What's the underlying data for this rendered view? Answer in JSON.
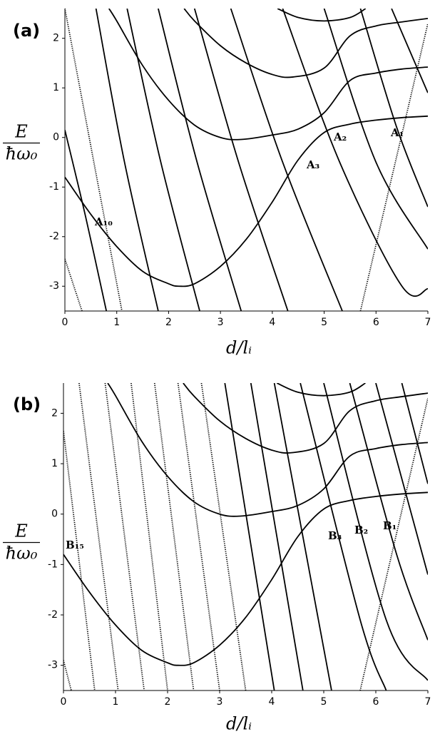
{
  "chart_data": [
    {
      "type": "line",
      "panel": "(a)",
      "xlabel": "d/lᵢ",
      "ylabel": [
        "E",
        "ħω₀"
      ],
      "xlim": [
        0,
        7
      ],
      "ylim": [
        -3.5,
        2.6
      ],
      "xticks": [
        0,
        1,
        2,
        3,
        4,
        5,
        6,
        7
      ],
      "yticks": [
        -3,
        -2,
        -1,
        0,
        1,
        2
      ],
      "color": "#000000",
      "annotations": [
        "A₁₀",
        "A₃",
        "A₂",
        "A₁"
      ],
      "series": [
        {
          "style": "solid",
          "x": [
            0,
            0.5,
            1,
            1.5,
            2,
            2.2,
            2.5,
            3,
            3.5,
            4,
            4.5,
            5,
            5.5,
            6,
            6.5,
            7
          ],
          "values": [
            -0.8,
            -1.55,
            -2.2,
            -2.7,
            -2.95,
            -3.0,
            -2.95,
            -2.6,
            -2.05,
            -1.3,
            -0.45,
            0.1,
            0.27,
            0.35,
            0.4,
            0.43
          ]
        },
        {
          "style": "solid",
          "x": [
            0.85,
            1,
            1.5,
            2,
            2.5,
            3,
            3.4,
            4,
            4.5,
            5,
            5.5,
            6,
            6.5,
            7
          ],
          "values": [
            2.6,
            2.35,
            1.45,
            0.75,
            0.25,
            0.0,
            -0.04,
            0.05,
            0.17,
            0.5,
            1.15,
            1.3,
            1.38,
            1.42
          ]
        },
        {
          "style": "solid",
          "x": [
            2.3,
            2.5,
            3,
            3.5,
            4,
            4.4,
            5,
            5.5,
            6,
            6.5,
            7
          ],
          "values": [
            2.6,
            2.35,
            1.85,
            1.5,
            1.27,
            1.22,
            1.4,
            2.05,
            2.25,
            2.33,
            2.4
          ]
        },
        {
          "style": "solid",
          "x": [
            4.1,
            4.5,
            5,
            5.5,
            5.8
          ],
          "values": [
            2.6,
            2.42,
            2.35,
            2.42,
            2.6
          ]
        },
        {
          "style": "dotted",
          "x": [
            0,
            0.33
          ],
          "values": [
            -2.45,
            -3.5
          ]
        },
        {
          "style": "dotted",
          "x": [
            0,
            1.1
          ],
          "values": [
            2.6,
            -3.5
          ]
        },
        {
          "style": "solid",
          "x": [
            0,
            0.4,
            0.8
          ],
          "values": [
            0.15,
            -1.6,
            -3.5
          ]
        },
        {
          "style": "solid",
          "x": [
            0.6,
            1.15,
            1.8
          ],
          "values": [
            2.6,
            -0.5,
            -3.5
          ]
        },
        {
          "style": "solid",
          "x": [
            1.2,
            1.85,
            2.6
          ],
          "values": [
            2.6,
            -0.5,
            -3.5
          ]
        },
        {
          "style": "solid",
          "x": [
            1.8,
            2.55,
            3.4
          ],
          "values": [
            2.6,
            -0.5,
            -3.5
          ]
        },
        {
          "style": "solid",
          "x": [
            2.5,
            3.35,
            4.3
          ],
          "values": [
            2.6,
            -0.5,
            -3.5
          ]
        },
        {
          "style": "solid",
          "x": [
            3.2,
            4.2,
            5.35
          ],
          "values": [
            2.6,
            -0.5,
            -3.5
          ]
        },
        {
          "style": "solid",
          "x": [
            4.2,
            5.3,
            6.5,
            7
          ],
          "values": [
            2.6,
            -0.5,
            -3.0,
            -3.05
          ]
        },
        {
          "style": "solid",
          "x": [
            5.0,
            6.0,
            7
          ],
          "values": [
            2.6,
            -0.5,
            -2.25
          ]
        },
        {
          "style": "solid",
          "x": [
            5.7,
            6.4,
            7
          ],
          "values": [
            2.6,
            0.2,
            -1.4
          ]
        },
        {
          "style": "solid",
          "x": [
            6.3,
            7
          ],
          "values": [
            2.6,
            0.9
          ]
        },
        {
          "style": "dotted",
          "x": [
            5.7,
            7
          ],
          "values": [
            -3.5,
            2.3
          ]
        }
      ]
    },
    {
      "type": "line",
      "panel": "(b)",
      "xlabel": "d/lᵢ",
      "ylabel": [
        "E",
        "ħω₀"
      ],
      "xlim": [
        0,
        7
      ],
      "ylim": [
        -3.5,
        2.6
      ],
      "xticks": [
        0,
        1,
        2,
        3,
        4,
        5,
        6,
        7
      ],
      "yticks": [
        -3,
        -2,
        -1,
        0,
        1,
        2
      ],
      "color": "#000000",
      "annotations": [
        "B₁₅",
        "B₃",
        "B₂",
        "B₁"
      ],
      "series": [
        {
          "style": "solid",
          "x": [
            0,
            0.5,
            1,
            1.5,
            2,
            2.2,
            2.5,
            3,
            3.5,
            4,
            4.5,
            5,
            5.5,
            6,
            6.5,
            7
          ],
          "values": [
            -0.8,
            -1.55,
            -2.2,
            -2.7,
            -2.95,
            -3.0,
            -2.95,
            -2.6,
            -2.05,
            -1.3,
            -0.45,
            0.1,
            0.27,
            0.35,
            0.4,
            0.43
          ]
        },
        {
          "style": "solid",
          "x": [
            0.85,
            1,
            1.5,
            2,
            2.5,
            3,
            3.4,
            4,
            4.5,
            5,
            5.5,
            6,
            6.5,
            7
          ],
          "values": [
            2.6,
            2.35,
            1.45,
            0.75,
            0.25,
            0.0,
            -0.04,
            0.05,
            0.17,
            0.5,
            1.15,
            1.3,
            1.38,
            1.42
          ]
        },
        {
          "style": "solid",
          "x": [
            2.3,
            2.5,
            3,
            3.5,
            4,
            4.4,
            5,
            5.5,
            6,
            6.5,
            7
          ],
          "values": [
            2.6,
            2.35,
            1.85,
            1.5,
            1.27,
            1.22,
            1.4,
            2.05,
            2.25,
            2.33,
            2.4
          ]
        },
        {
          "style": "solid",
          "x": [
            4.1,
            4.5,
            5,
            5.5,
            5.8
          ],
          "values": [
            2.6,
            2.42,
            2.35,
            2.42,
            2.6
          ]
        },
        {
          "style": "dotted",
          "x": [
            0,
            0.15
          ],
          "values": [
            -2.9,
            -3.5
          ]
        },
        {
          "style": "dotted",
          "x": [
            0,
            0.6
          ],
          "values": [
            1.65,
            -3.5
          ]
        },
        {
          "style": "dotted",
          "x": [
            0.3,
            1.05
          ],
          "values": [
            2.6,
            -3.5
          ]
        },
        {
          "style": "dotted",
          "x": [
            0.8,
            1.55
          ],
          "values": [
            2.6,
            -3.5
          ]
        },
        {
          "style": "dotted",
          "x": [
            1.3,
            2.0
          ],
          "values": [
            2.6,
            -3.5
          ]
        },
        {
          "style": "dotted",
          "x": [
            1.75,
            2.5
          ],
          "values": [
            2.6,
            -3.5
          ]
        },
        {
          "style": "dotted",
          "x": [
            2.2,
            3.0
          ],
          "values": [
            2.6,
            -3.5
          ]
        },
        {
          "style": "dotted",
          "x": [
            2.65,
            3.5
          ],
          "values": [
            2.6,
            -3.5
          ]
        },
        {
          "style": "solid",
          "x": [
            3.1,
            4.05
          ],
          "values": [
            2.6,
            -3.5
          ]
        },
        {
          "style": "solid",
          "x": [
            3.6,
            4.6
          ],
          "values": [
            2.6,
            -3.5
          ]
        },
        {
          "style": "solid",
          "x": [
            4.05,
            5.15
          ],
          "values": [
            2.6,
            -3.5
          ]
        },
        {
          "style": "solid",
          "x": [
            4.55,
            5.7,
            6.2
          ],
          "values": [
            2.6,
            -2.1,
            -3.5
          ]
        },
        {
          "style": "solid",
          "x": [
            5.0,
            6.2,
            7
          ],
          "values": [
            2.6,
            -2.1,
            -3.3
          ]
        },
        {
          "style": "solid",
          "x": [
            5.5,
            6.4,
            7
          ],
          "values": [
            2.6,
            -0.8,
            -2.5
          ]
        },
        {
          "style": "solid",
          "x": [
            6.0,
            7
          ],
          "values": [
            2.6,
            -1.2
          ]
        },
        {
          "style": "solid",
          "x": [
            6.5,
            7
          ],
          "values": [
            2.6,
            0.6
          ]
        },
        {
          "style": "dotted",
          "x": [
            5.7,
            7
          ],
          "values": [
            -3.5,
            2.3
          ]
        }
      ]
    }
  ]
}
